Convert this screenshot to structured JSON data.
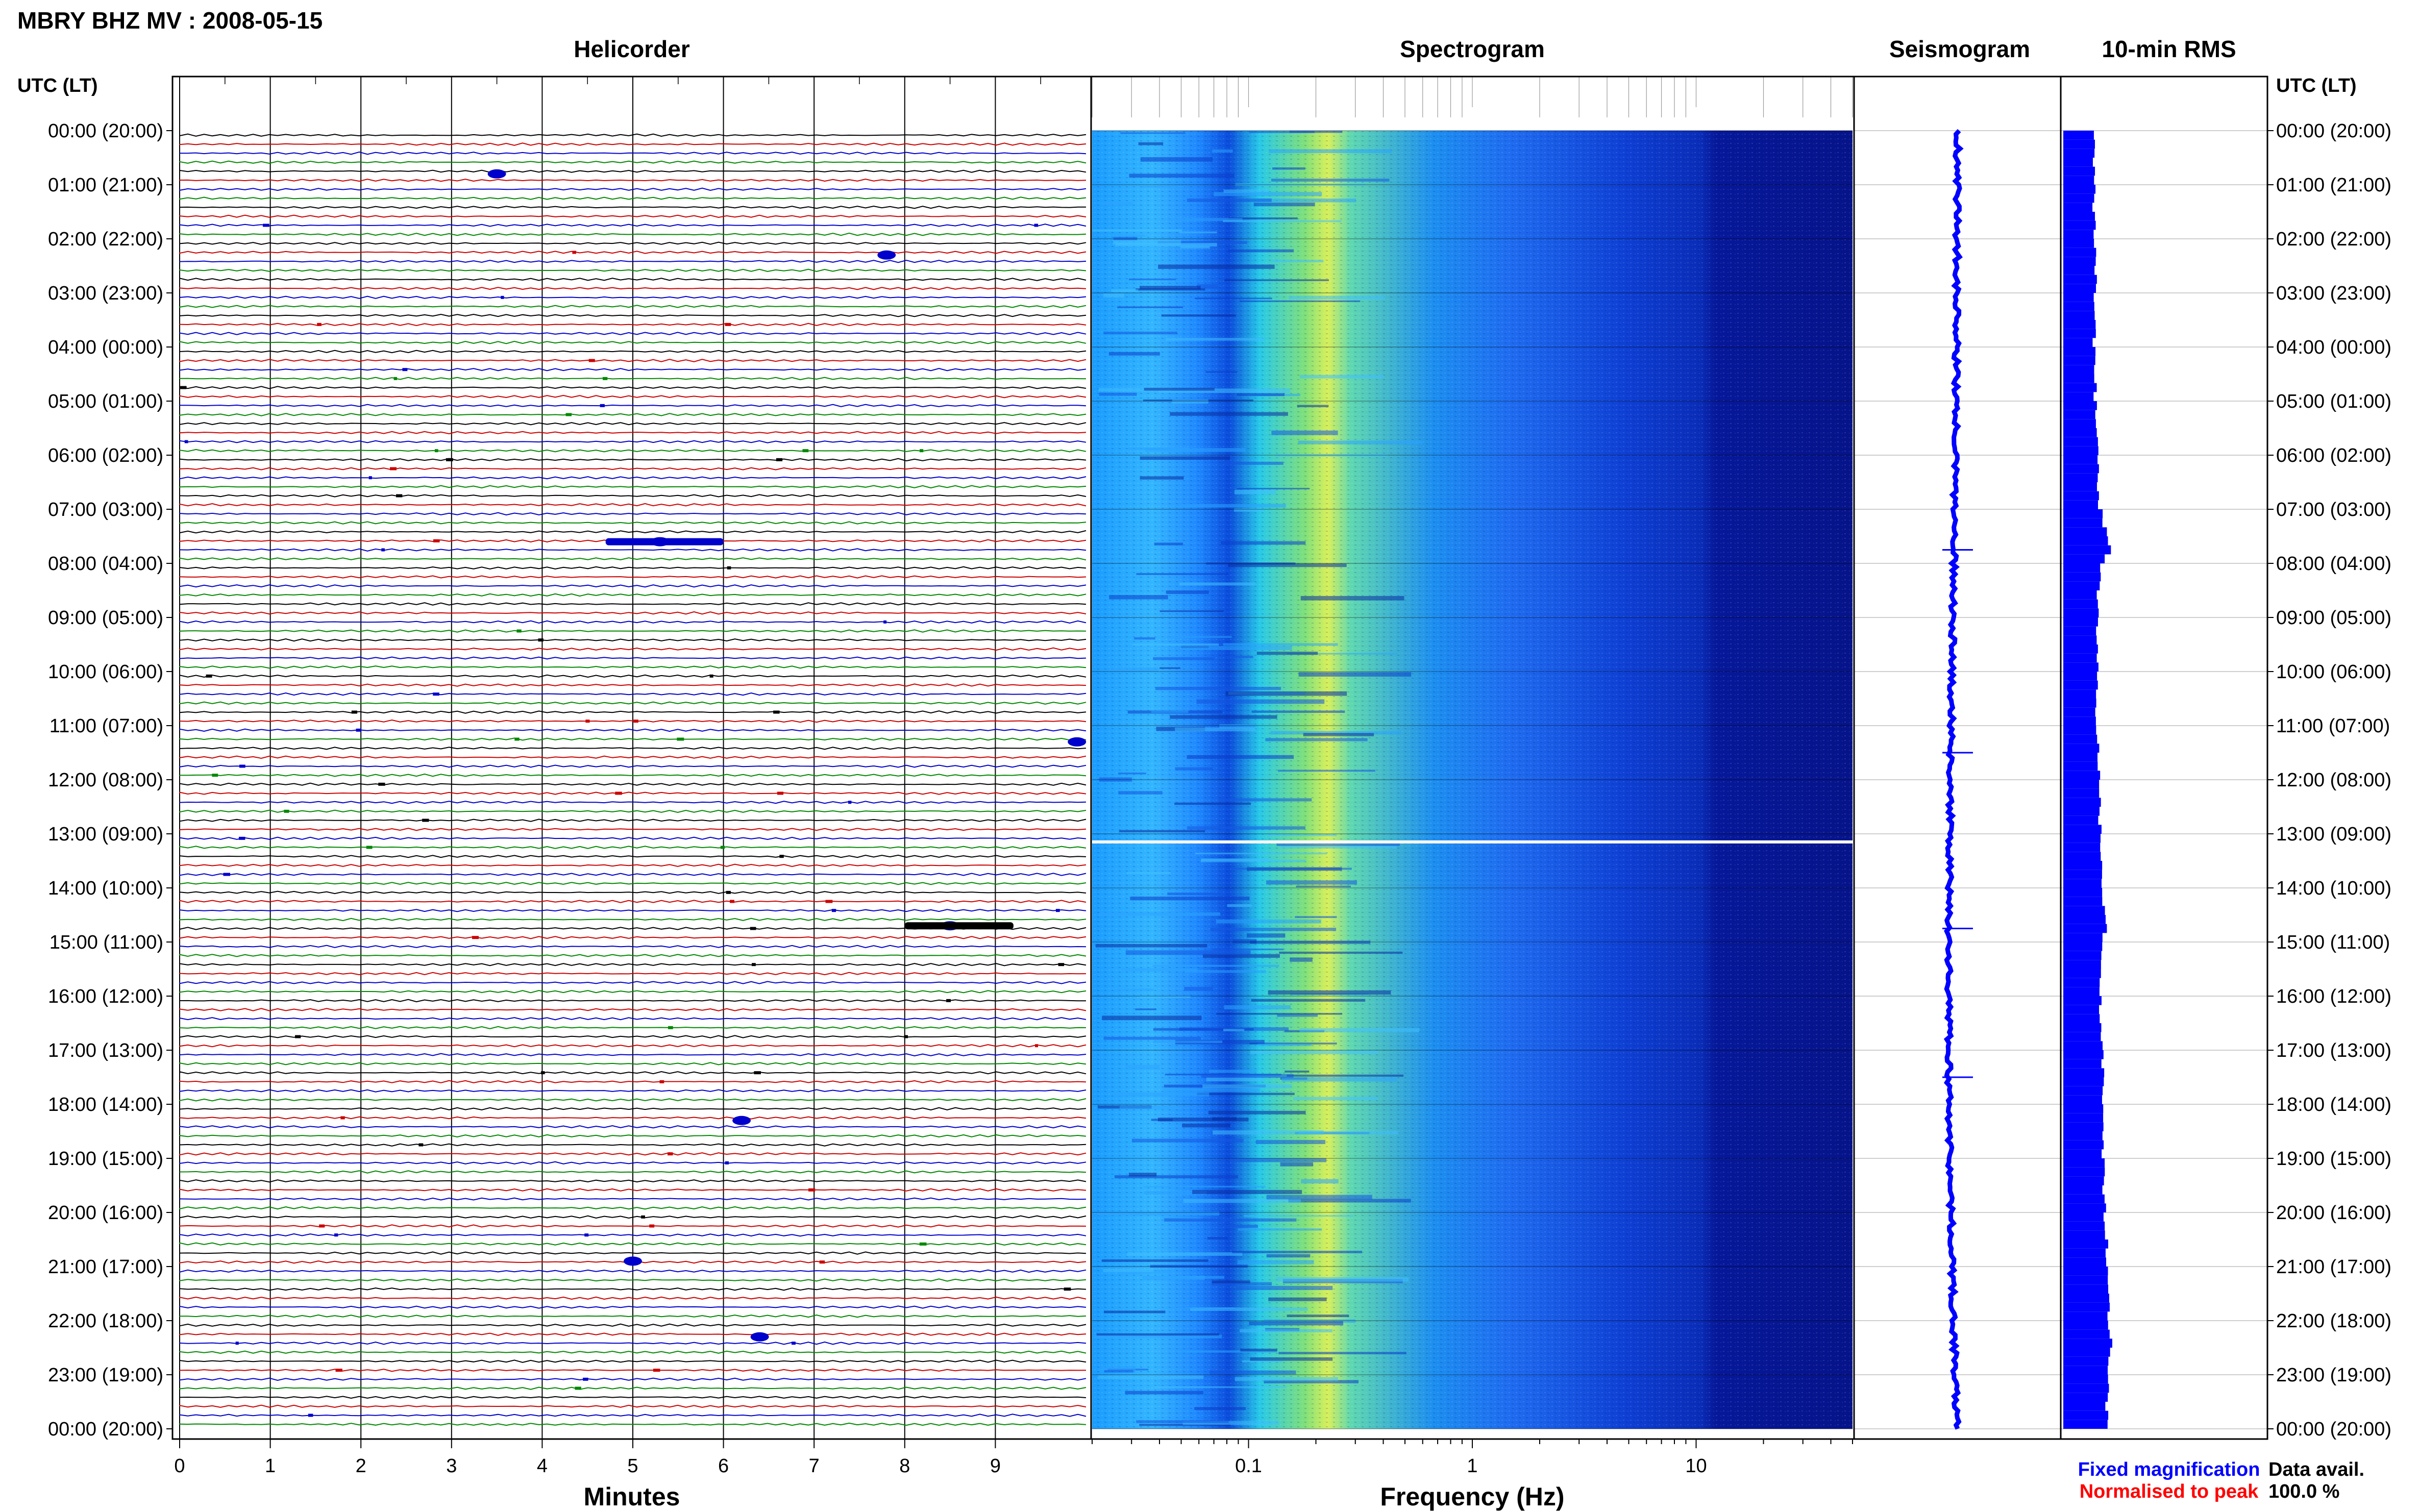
{
  "title": "MBRY BHZ MV : 2008-05-15",
  "time_axis_label_left": "UTC (LT)",
  "time_axis_label_right": "UTC (LT)",
  "time_ticks": [
    "00:00 (20:00)",
    "01:00 (21:00)",
    "02:00 (22:00)",
    "03:00 (23:00)",
    "04:00 (00:00)",
    "05:00 (01:00)",
    "06:00 (02:00)",
    "07:00 (03:00)",
    "08:00 (04:00)",
    "09:00 (05:00)",
    "10:00 (06:00)",
    "11:00 (07:00)",
    "12:00 (08:00)",
    "13:00 (09:00)",
    "14:00 (10:00)",
    "15:00 (11:00)",
    "16:00 (12:00)",
    "17:00 (13:00)",
    "18:00 (14:00)",
    "19:00 (15:00)",
    "20:00 (16:00)",
    "21:00 (17:00)",
    "22:00 (18:00)",
    "23:00 (19:00)",
    "00:00 (20:00)"
  ],
  "panels": {
    "helicorder": {
      "title": "Helicorder",
      "xlabel": "Minutes",
      "xticks": [
        "0",
        "1",
        "2",
        "3",
        "4",
        "5",
        "6",
        "7",
        "8",
        "9"
      ],
      "xlim": [
        0,
        10
      ]
    },
    "spectrogram": {
      "title": "Spectrogram",
      "xlabel": "Frequency (Hz)",
      "xticks": [
        "0.1",
        "1",
        "10"
      ],
      "xlim": [
        0.02,
        50
      ],
      "xscale": "log"
    },
    "seismogram": {
      "title": "Seismogram"
    },
    "rms": {
      "title": "10-min RMS"
    }
  },
  "legend": {
    "fixed": "Fixed magnification",
    "normalised": "Normalised to peak",
    "fixed_color": "#0000ff",
    "normalised_color": "#ff0000"
  },
  "availability": {
    "label": "Data avail.",
    "value": "100.0 %"
  },
  "colors": {
    "trace_cycle": [
      "#000000",
      "#cc0000",
      "#0000cc",
      "#008800"
    ],
    "seismogram": "#0000ff",
    "rms": "#0000ff"
  },
  "chart_data": [
    {
      "type": "line",
      "name": "helicorder",
      "lines_per_hour": 6,
      "minutes_per_line": 10,
      "events": [
        {
          "hour": 0.8,
          "minute": 3.5
        },
        {
          "hour": 2.3,
          "minute": 7.8
        },
        {
          "hour": 7.6,
          "minute": 5.3
        },
        {
          "hour": 11.3,
          "minute": 9.9
        },
        {
          "hour": 14.7,
          "minute": 8.5
        },
        {
          "hour": 18.3,
          "minute": 6.2
        },
        {
          "hour": 20.9,
          "minute": 5.0
        },
        {
          "hour": 22.3,
          "minute": 6.4
        }
      ]
    },
    {
      "type": "heatmap",
      "name": "spectrogram",
      "x_scale": "log",
      "xlim": [
        0.02,
        50
      ],
      "peak_frequency_hz": 0.25,
      "gap_hour": 13.15
    },
    {
      "type": "line",
      "name": "10-min RMS",
      "hours": [
        0,
        1,
        2,
        3,
        4,
        5,
        6,
        7,
        7.75,
        8,
        9,
        10,
        11,
        12,
        13,
        14,
        14.75,
        15,
        16,
        17,
        18,
        19,
        20,
        21,
        22,
        22.5,
        23,
        24
      ],
      "values": [
        1.0,
        1.0,
        1.02,
        1.05,
        1.0,
        1.05,
        1.1,
        1.2,
        1.6,
        1.2,
        1.1,
        1.1,
        1.1,
        1.15,
        1.2,
        1.25,
        1.4,
        1.3,
        1.2,
        1.3,
        1.25,
        1.3,
        1.35,
        1.45,
        1.5,
        1.6,
        1.45,
        1.4
      ]
    }
  ]
}
